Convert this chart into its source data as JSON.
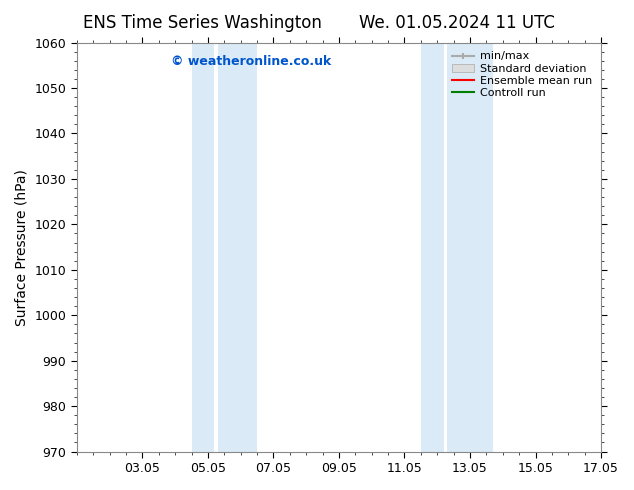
{
  "title_left": "ENS Time Series Washington",
  "title_right": "We. 01.05.2024 11 UTC",
  "ylabel": "Surface Pressure (hPa)",
  "ylim": [
    970,
    1060
  ],
  "yticks": [
    970,
    980,
    990,
    1000,
    1010,
    1020,
    1030,
    1040,
    1050,
    1060
  ],
  "xlim": [
    0,
    16
  ],
  "xtick_labels": [
    "03.05",
    "05.05",
    "07.05",
    "09.05",
    "11.05",
    "13.05",
    "15.05",
    "17.05"
  ],
  "xtick_positions": [
    2,
    4,
    6,
    8,
    10,
    12,
    14,
    16
  ],
  "shaded_bands": [
    {
      "x_start": 3.5,
      "x_end": 4.2,
      "color": "#daeaf6"
    },
    {
      "x_start": 4.2,
      "x_end": 5.5,
      "color": "#daeaf6"
    },
    {
      "x_start": 10.5,
      "x_end": 11.2,
      "color": "#daeaf6"
    },
    {
      "x_start": 11.2,
      "x_end": 12.5,
      "color": "#daeaf6"
    }
  ],
  "watermark_text": "© weatheronline.co.uk",
  "watermark_color": "#0055cc",
  "background_color": "#ffffff",
  "plot_bg_color": "#ffffff",
  "legend_items": [
    {
      "label": "min/max",
      "color": "#aaaaaa",
      "style": "errorbar"
    },
    {
      "label": "Standard deviation",
      "color": "#cccccc",
      "style": "bar"
    },
    {
      "label": "Ensemble mean run",
      "color": "#ff0000",
      "style": "line"
    },
    {
      "label": "Controll run",
      "color": "#008000",
      "style": "line"
    }
  ],
  "title_fontsize": 12,
  "axis_label_fontsize": 10,
  "tick_fontsize": 9,
  "legend_fontsize": 8
}
